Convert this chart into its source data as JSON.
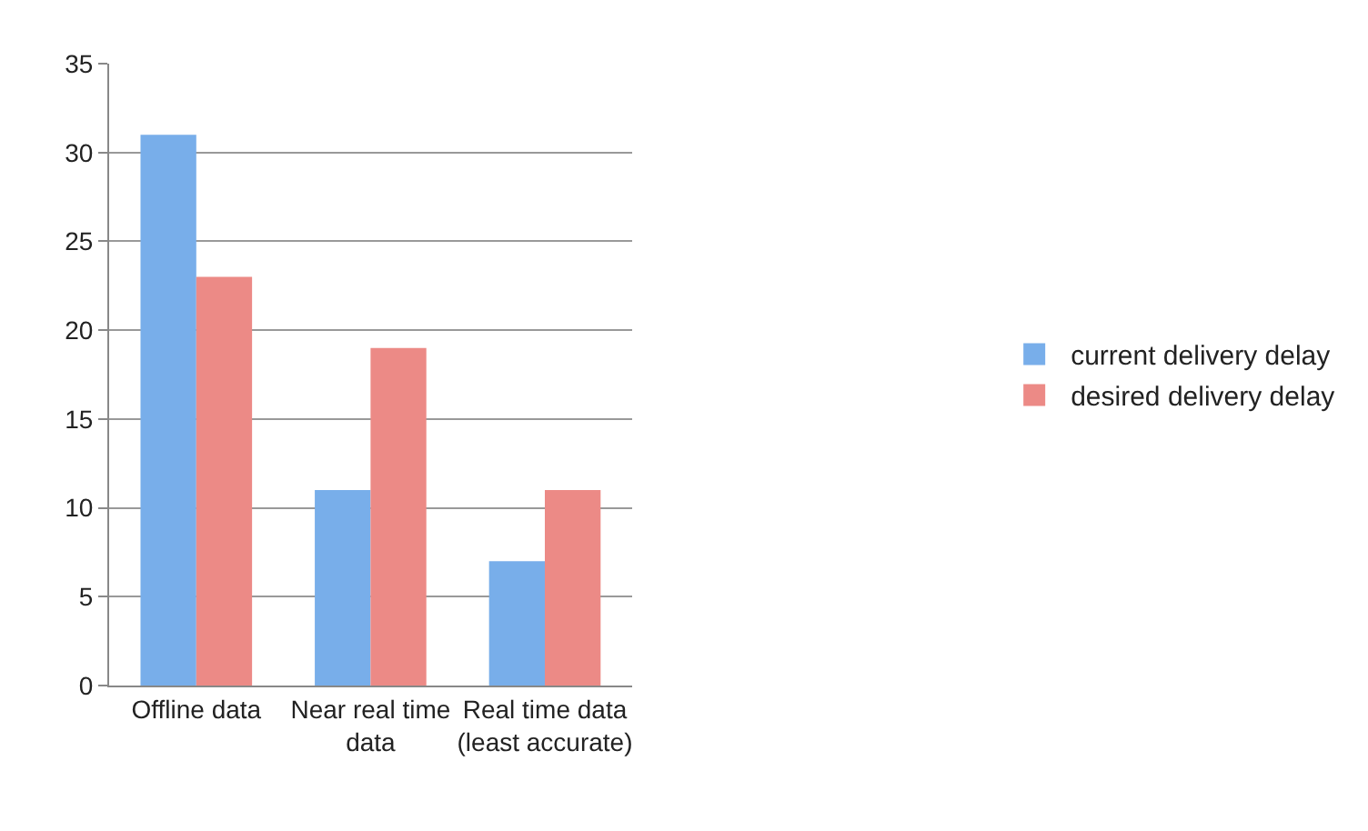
{
  "chart_data": {
    "type": "bar",
    "categories": [
      "Offline data",
      "Near real time data",
      "Real time data (least accurate)"
    ],
    "series": [
      {
        "name": "current delivery delay",
        "color": "#78aeea",
        "values": [
          31,
          11,
          7
        ]
      },
      {
        "name": "desired delivery delay",
        "color": "#ec8a86",
        "values": [
          23,
          19,
          11
        ]
      }
    ],
    "ylim": [
      0,
      35
    ],
    "yticks": [
      0,
      5,
      10,
      15,
      20,
      25,
      30,
      35
    ],
    "grid": "y",
    "legend": "right"
  }
}
